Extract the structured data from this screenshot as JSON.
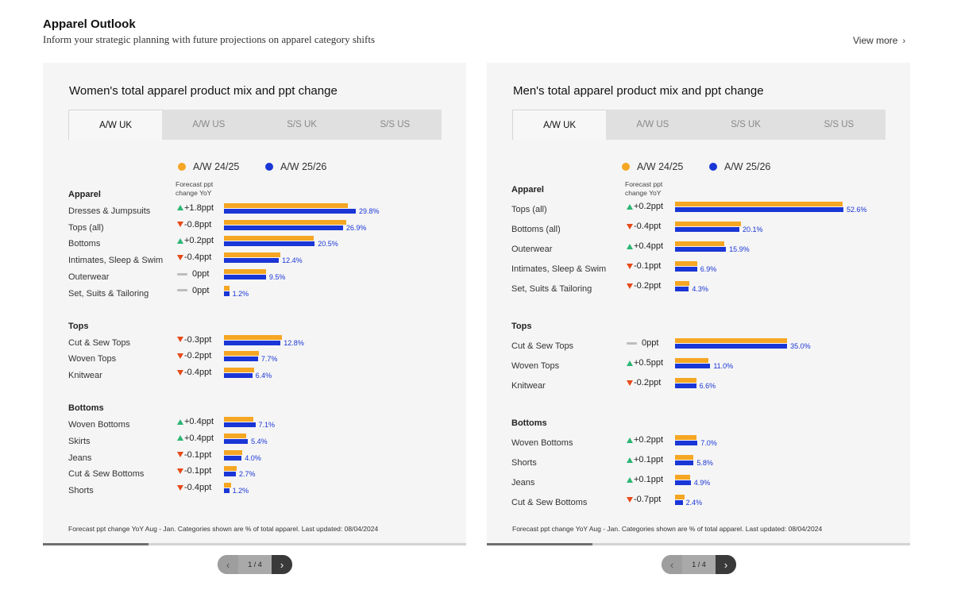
{
  "header": {
    "title": "Apparel Outlook",
    "subtitle": "Inform your strategic planning with future projections on apparel category shifts",
    "view_more": "View more",
    "view_more_icon": "chevron-right-icon"
  },
  "colors": {
    "prev_season": "#f5a623",
    "curr_season": "#1a36d6",
    "up": "#2bb673",
    "down": "#e64a19",
    "flat": "#bdbdbd"
  },
  "chart_data": [
    {
      "type": "bar",
      "title": "Women's total apparel product mix and ppt change",
      "tabs": [
        "A/W UK",
        "A/W US",
        "S/S UK",
        "S/S US"
      ],
      "active_tab": "A/W UK",
      "legend": [
        "A/W 24/25",
        "A/W 25/26"
      ],
      "change_header": "Forecast ppt change YoY",
      "max_value": 29.8,
      "sections": [
        {
          "label": "Apparel",
          "rows": [
            {
              "category": "Dresses & Jumpsuits",
              "change": "+1.8ppt",
              "dir": "up",
              "prev": 28.0,
              "curr": 29.8,
              "curr_label": "29.8%"
            },
            {
              "category": "Tops (all)",
              "change": "-0.8ppt",
              "dir": "down",
              "prev": 27.7,
              "curr": 26.9,
              "curr_label": "26.9%"
            },
            {
              "category": "Bottoms",
              "change": "+0.2ppt",
              "dir": "up",
              "prev": 20.3,
              "curr": 20.5,
              "curr_label": "20.5%"
            },
            {
              "category": "Intimates, Sleep & Swim",
              "change": "-0.4ppt",
              "dir": "down",
              "prev": 12.8,
              "curr": 12.4,
              "curr_label": "12.4%"
            },
            {
              "category": "Outerwear",
              "change": "0ppt",
              "dir": "flat",
              "prev": 9.5,
              "curr": 9.5,
              "curr_label": "9.5%"
            },
            {
              "category": "Set, Suits & Tailoring",
              "change": "0ppt",
              "dir": "flat",
              "prev": 1.2,
              "curr": 1.2,
              "curr_label": "1.2%"
            }
          ]
        },
        {
          "label": "Tops",
          "rows": [
            {
              "category": "Cut & Sew Tops",
              "change": "-0.3ppt",
              "dir": "down",
              "prev": 13.1,
              "curr": 12.8,
              "curr_label": "12.8%"
            },
            {
              "category": "Woven Tops",
              "change": "-0.2ppt",
              "dir": "down",
              "prev": 7.9,
              "curr": 7.7,
              "curr_label": "7.7%"
            },
            {
              "category": "Knitwear",
              "change": "-0.4ppt",
              "dir": "down",
              "prev": 6.8,
              "curr": 6.4,
              "curr_label": "6.4%"
            }
          ]
        },
        {
          "label": "Bottoms",
          "rows": [
            {
              "category": "Woven Bottoms",
              "change": "+0.4ppt",
              "dir": "up",
              "prev": 6.7,
              "curr": 7.1,
              "curr_label": "7.1%"
            },
            {
              "category": "Skirts",
              "change": "+0.4ppt",
              "dir": "up",
              "prev": 5.0,
              "curr": 5.4,
              "curr_label": "5.4%"
            },
            {
              "category": "Jeans",
              "change": "-0.1ppt",
              "dir": "down",
              "prev": 4.1,
              "curr": 4.0,
              "curr_label": "4.0%"
            },
            {
              "category": "Cut & Sew Bottoms",
              "change": "-0.1ppt",
              "dir": "down",
              "prev": 2.8,
              "curr": 2.7,
              "curr_label": "2.7%"
            },
            {
              "category": "Shorts",
              "change": "-0.4ppt",
              "dir": "down",
              "prev": 1.6,
              "curr": 1.2,
              "curr_label": "1.2%"
            }
          ]
        }
      ],
      "footnote": "Forecast ppt change YoY Aug - Jan. Categories shown are % of total apparel. Last updated: 08/04/2024",
      "pager": "1 / 4",
      "progress": 0.25
    },
    {
      "type": "bar",
      "title": "Men's total apparel product mix and ppt change",
      "tabs": [
        "A/W UK",
        "A/W US",
        "S/S UK",
        "S/S US"
      ],
      "active_tab": "A/W UK",
      "legend": [
        "A/W 24/25",
        "A/W 25/26"
      ],
      "change_header": "Forecast ppt change YoY",
      "max_value": 52.6,
      "sections": [
        {
          "label": "Apparel",
          "rows": [
            {
              "category": "Tops (all)",
              "change": "+0.2ppt",
              "dir": "up",
              "prev": 52.4,
              "curr": 52.6,
              "curr_label": "52.6%"
            },
            {
              "category": "Bottoms (all)",
              "change": "-0.4ppt",
              "dir": "down",
              "prev": 20.5,
              "curr": 20.1,
              "curr_label": "20.1%"
            },
            {
              "category": "Outerwear",
              "change": "+0.4ppt",
              "dir": "up",
              "prev": 15.5,
              "curr": 15.9,
              "curr_label": "15.9%"
            },
            {
              "category": "Intimates, Sleep & Swim",
              "change": "-0.1ppt",
              "dir": "down",
              "prev": 7.0,
              "curr": 6.9,
              "curr_label": "6.9%"
            },
            {
              "category": "Set, Suits & Tailoring",
              "change": "-0.2ppt",
              "dir": "down",
              "prev": 4.5,
              "curr": 4.3,
              "curr_label": "4.3%"
            }
          ]
        },
        {
          "label": "Tops",
          "rows": [
            {
              "category": "Cut & Sew Tops",
              "change": "0ppt",
              "dir": "flat",
              "prev": 35.0,
              "curr": 35.0,
              "curr_label": "35.0%"
            },
            {
              "category": "Woven Tops",
              "change": "+0.5ppt",
              "dir": "up",
              "prev": 10.5,
              "curr": 11.0,
              "curr_label": "11.0%"
            },
            {
              "category": "Knitwear",
              "change": "-0.2ppt",
              "dir": "down",
              "prev": 6.8,
              "curr": 6.6,
              "curr_label": "6.6%"
            }
          ]
        },
        {
          "label": "Bottoms",
          "rows": [
            {
              "category": "Woven Bottoms",
              "change": "+0.2ppt",
              "dir": "up",
              "prev": 6.8,
              "curr": 7.0,
              "curr_label": "7.0%"
            },
            {
              "category": "Shorts",
              "change": "+0.1ppt",
              "dir": "up",
              "prev": 5.7,
              "curr": 5.8,
              "curr_label": "5.8%"
            },
            {
              "category": "Jeans",
              "change": "+0.1ppt",
              "dir": "up",
              "prev": 4.8,
              "curr": 4.9,
              "curr_label": "4.9%"
            },
            {
              "category": "Cut & Sew Bottoms",
              "change": "-0.7ppt",
              "dir": "down",
              "prev": 3.1,
              "curr": 2.4,
              "curr_label": "2.4%"
            }
          ]
        }
      ],
      "footnote": "Forecast ppt change YoY Aug - Jan. Categories shown are % of total apparel. Last updated: 08/04/2024",
      "pager": "1 / 4",
      "progress": 0.25
    }
  ]
}
